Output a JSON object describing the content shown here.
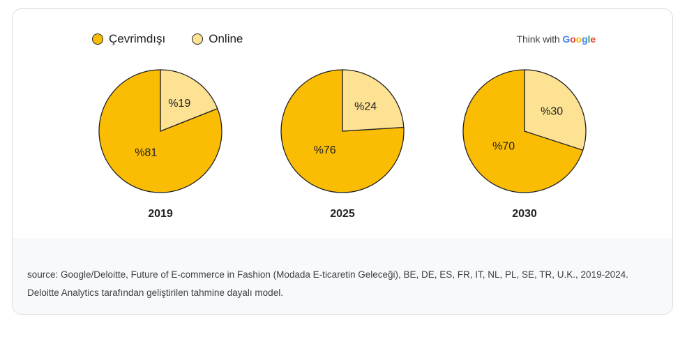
{
  "legend": {
    "items": [
      {
        "label": "Çevrimdışı",
        "color": "#FBBC04"
      },
      {
        "label": "Online",
        "color": "#FDE293"
      }
    ]
  },
  "brand": {
    "prefix": "Think with ",
    "google": "Google",
    "google_colors": [
      "#4285F4",
      "#EA4335",
      "#FBBC04",
      "#4285F4",
      "#34A853",
      "#EA4335"
    ]
  },
  "chart_data": [
    {
      "type": "pie",
      "title": "2019",
      "labels": [
        "Çevrimdışı",
        "Online"
      ],
      "values": [
        81,
        19
      ],
      "value_labels": [
        "%81",
        "%19"
      ]
    },
    {
      "type": "pie",
      "title": "2025",
      "labels": [
        "Çevrimdışı",
        "Online"
      ],
      "values": [
        76,
        24
      ],
      "value_labels": [
        "%76",
        "%24"
      ]
    },
    {
      "type": "pie",
      "title": "2030",
      "labels": [
        "Çevrimdışı",
        "Online"
      ],
      "values": [
        70,
        30
      ],
      "value_labels": [
        "%70",
        "%30"
      ]
    }
  ],
  "footer": {
    "line1": "source: Google/Deloitte, Future of E-commerce in Fashion (Modada E-ticaretin Geleceği), BE, DE, ES, FR, IT, NL, PL, SE, TR, U.K., 2019-2024.",
    "line2": "Deloitte Analytics tarafından geliştirilen tahmine dayalı model."
  }
}
